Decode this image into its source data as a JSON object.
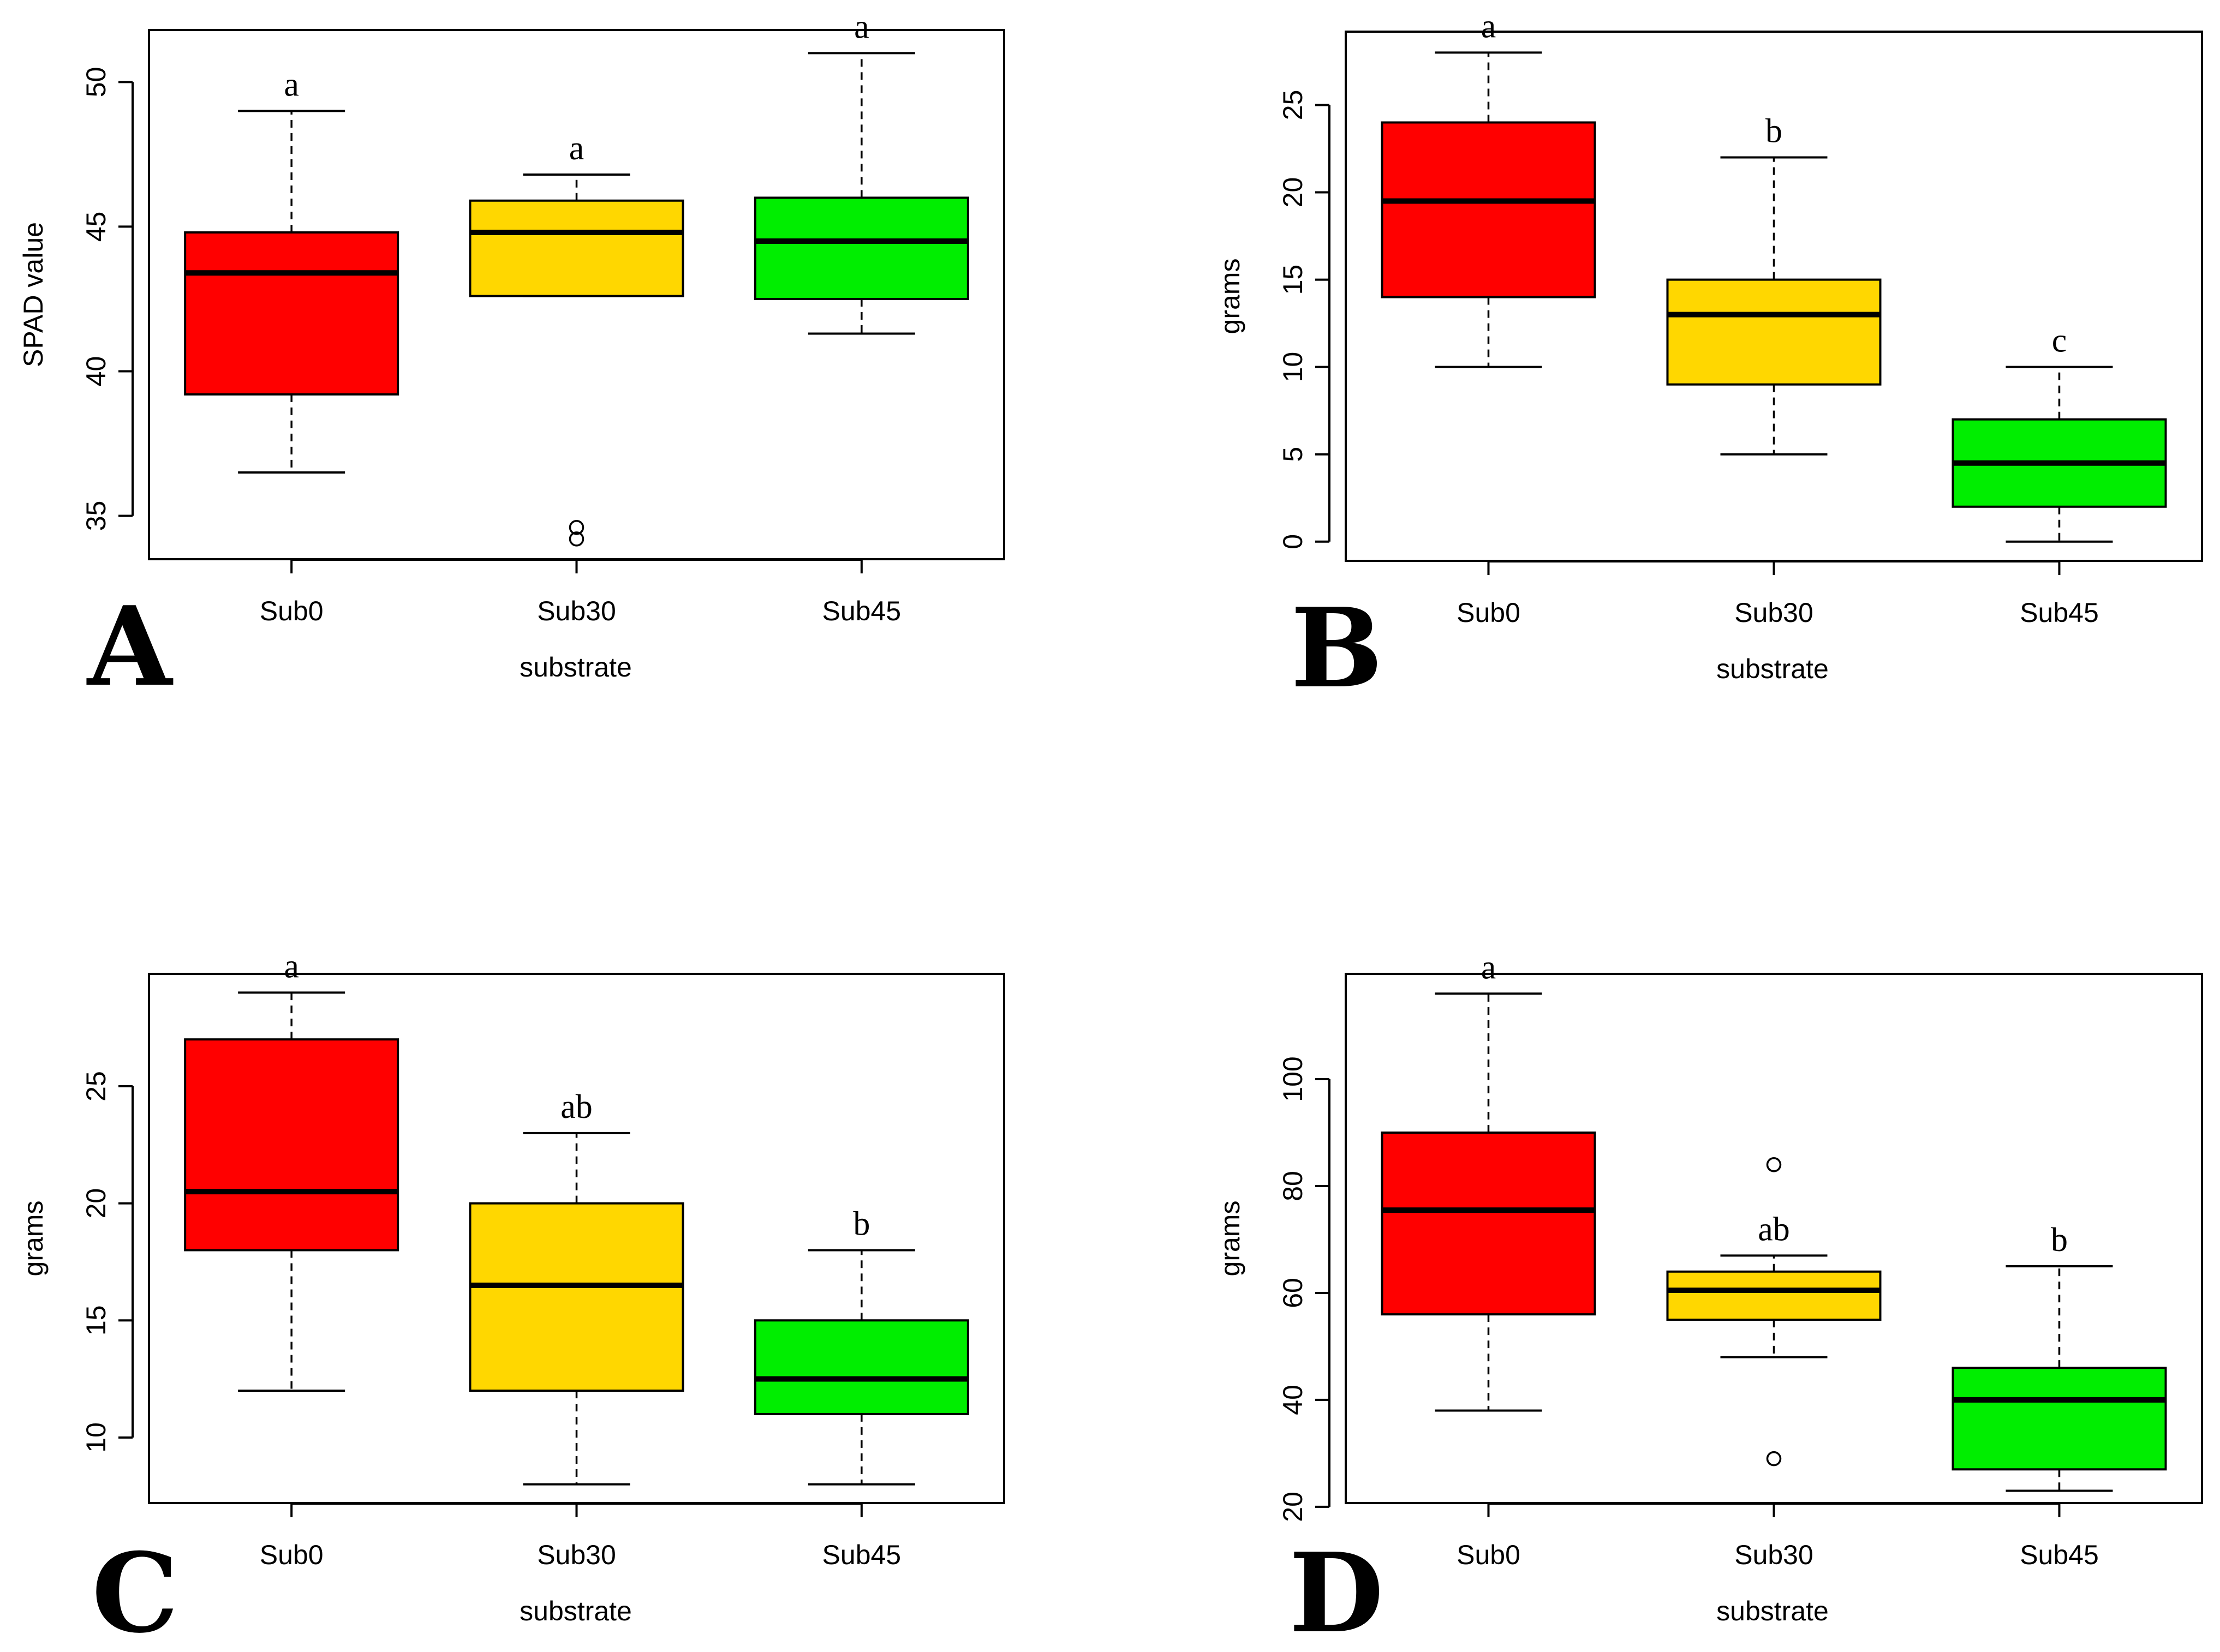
{
  "figure": {
    "background": "#ffffff"
  },
  "colors": {
    "Sub0": "#ff0000",
    "Sub30": "#ffd700",
    "Sub45": "#00ee00",
    "stroke": "#000000"
  },
  "chart_data": [
    {
      "panel": "A",
      "type": "box",
      "xlabel": "substrate",
      "ylabel": "SPAD value",
      "ylim": [
        33.5,
        51.8
      ],
      "yticks": [
        35,
        40,
        45,
        50
      ],
      "categories": [
        "Sub0",
        "Sub30",
        "Sub45"
      ],
      "boxes": [
        {
          "category": "Sub0",
          "color": "#ff0000",
          "min": 36.5,
          "q1": 39.2,
          "median": 43.4,
          "q3": 44.8,
          "max": 49.0,
          "outliers": [],
          "letter": "a"
        },
        {
          "category": "Sub30",
          "color": "#ffd700",
          "min": 42.6,
          "q1": 42.6,
          "median": 44.8,
          "q3": 45.9,
          "max": 46.8,
          "outliers": [
            34.6,
            34.2
          ],
          "letter": "a"
        },
        {
          "category": "Sub45",
          "color": "#00ee00",
          "min": 41.3,
          "q1": 42.5,
          "median": 44.5,
          "q3": 46.0,
          "max": 51.0,
          "outliers": [],
          "letter": "a"
        }
      ]
    },
    {
      "panel": "B",
      "type": "box",
      "xlabel": "substrate",
      "ylabel": "grams",
      "ylim": [
        -1.1,
        29.2
      ],
      "yticks": [
        0,
        5,
        10,
        15,
        20,
        25
      ],
      "categories": [
        "Sub0",
        "Sub30",
        "Sub45"
      ],
      "boxes": [
        {
          "category": "Sub0",
          "color": "#ff0000",
          "min": 10,
          "q1": 14,
          "median": 19.5,
          "q3": 24,
          "max": 28,
          "outliers": [],
          "letter": "a"
        },
        {
          "category": "Sub30",
          "color": "#ffd700",
          "min": 5,
          "q1": 9,
          "median": 13,
          "q3": 15,
          "max": 22,
          "outliers": [],
          "letter": "b"
        },
        {
          "category": "Sub45",
          "color": "#00ee00",
          "min": 0,
          "q1": 2,
          "median": 4.5,
          "q3": 7,
          "max": 10,
          "outliers": [],
          "letter": "c"
        }
      ]
    },
    {
      "panel": "C",
      "type": "box",
      "xlabel": "substrate",
      "ylabel": "grams",
      "ylim": [
        7.2,
        29.8
      ],
      "yticks": [
        10,
        15,
        20,
        25
      ],
      "categories": [
        "Sub0",
        "Sub30",
        "Sub45"
      ],
      "boxes": [
        {
          "category": "Sub0",
          "color": "#ff0000",
          "min": 12,
          "q1": 18,
          "median": 20.5,
          "q3": 27,
          "max": 29,
          "outliers": [],
          "letter": "a"
        },
        {
          "category": "Sub30",
          "color": "#ffd700",
          "min": 8,
          "q1": 12,
          "median": 16.5,
          "q3": 20,
          "max": 23,
          "outliers": [],
          "letter": "ab"
        },
        {
          "category": "Sub45",
          "color": "#00ee00",
          "min": 8,
          "q1": 11,
          "median": 12.5,
          "q3": 15,
          "max": 18,
          "outliers": [],
          "letter": "b"
        }
      ]
    },
    {
      "panel": "D",
      "type": "box",
      "xlabel": "substrate",
      "ylabel": "grams",
      "ylim": [
        20.7,
        119.7
      ],
      "yticks": [
        20,
        40,
        60,
        80,
        100
      ],
      "categories": [
        "Sub0",
        "Sub30",
        "Sub45"
      ],
      "boxes": [
        {
          "category": "Sub0",
          "color": "#ff0000",
          "min": 38,
          "q1": 56,
          "median": 75.5,
          "q3": 90,
          "max": 116,
          "outliers": [],
          "letter": "a"
        },
        {
          "category": "Sub30",
          "color": "#ffd700",
          "min": 48,
          "q1": 55,
          "median": 60.5,
          "q3": 64,
          "max": 67,
          "outliers": [
            84,
            29
          ],
          "letter": "ab"
        },
        {
          "category": "Sub45",
          "color": "#00ee00",
          "min": 23,
          "q1": 27,
          "median": 40,
          "q3": 46,
          "max": 65,
          "outliers": [],
          "letter": "b"
        }
      ]
    }
  ]
}
